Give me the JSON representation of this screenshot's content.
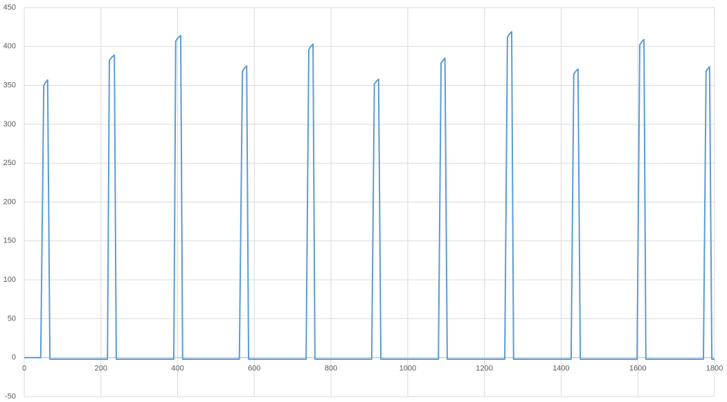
{
  "chart_data": {
    "type": "line",
    "x": [
      0,
      43,
      51,
      56,
      61,
      67,
      130,
      217,
      222,
      228,
      235,
      240,
      300,
      390,
      395,
      401,
      408,
      413,
      490,
      561,
      569,
      574,
      580,
      585,
      660,
      735,
      742,
      747,
      753,
      758,
      830,
      906,
      913,
      918,
      924,
      930,
      1000,
      1080,
      1087,
      1092,
      1097,
      1103,
      1180,
      1253,
      1260,
      1265,
      1271,
      1276,
      1350,
      1426,
      1433,
      1438,
      1444,
      1450,
      1520,
      1598,
      1605,
      1610,
      1616,
      1621,
      1700,
      1771,
      1778,
      1782,
      1787,
      1793,
      1800
    ],
    "series": [
      {
        "color": "#5b9bd5",
        "values": [
          0,
          0,
          350,
          354,
          357,
          -2,
          -2,
          -2,
          382,
          386,
          389,
          -2,
          -2,
          -2,
          407,
          411,
          414,
          -2,
          -2,
          -2,
          368,
          372,
          375,
          -2,
          -2,
          -2,
          396,
          400,
          403,
          -2,
          -2,
          -2,
          352,
          355,
          358,
          -2,
          -2,
          -2,
          379,
          382,
          385,
          -2,
          -2,
          -2,
          412,
          416,
          419,
          -2,
          -2,
          -2,
          365,
          368,
          371,
          -2,
          -2,
          -2,
          402,
          406,
          409,
          -2,
          -2,
          -2,
          368,
          371,
          374,
          -2,
          -2
        ]
      }
    ],
    "xlim": [
      0,
      1800
    ],
    "xticks": [
      0,
      200,
      400,
      600,
      800,
      1000,
      1200,
      1400,
      1600,
      1800
    ],
    "ylim": [
      -50,
      450
    ],
    "yticks": [
      -50,
      0,
      50,
      100,
      150,
      200,
      250,
      300,
      350,
      400,
      450
    ],
    "grid": true
  }
}
